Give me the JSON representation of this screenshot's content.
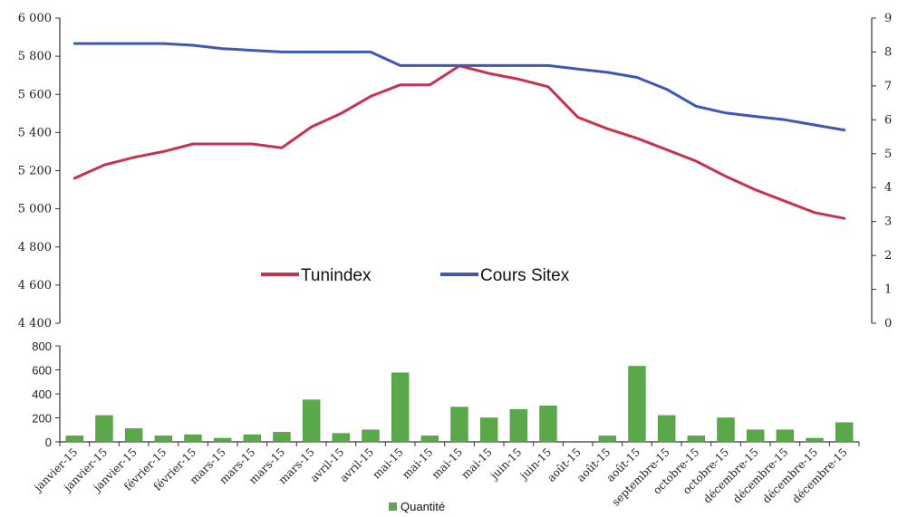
{
  "chart_data": [
    {
      "type": "line",
      "x": [
        "janvier-15",
        "janvier-15",
        "janvier-15",
        "février-15",
        "février-15",
        "mars-15",
        "mars-15",
        "mars-15",
        "mars-15",
        "avril-15",
        "avril-15",
        "mai-15",
        "mai-15",
        "mai-15",
        "mai-15",
        "juin-15",
        "juin-15",
        "août-15",
        "août-15",
        "août-15",
        "septembre-15",
        "octobre-15",
        "octobre-15",
        "décembre-15",
        "décembre-15",
        "décembre-15",
        "décembre-15"
      ],
      "y_left_ticks": [
        "6 000",
        "5 800",
        "5 600",
        "5 400",
        "5 200",
        "5 000",
        "4 800",
        "4 600",
        "4 400"
      ],
      "y_right_ticks": [
        "9",
        "8",
        "7",
        "6",
        "5",
        "4",
        "3",
        "2",
        "1",
        "0"
      ],
      "ylim_left": [
        4400,
        6000
      ],
      "ylim_right": [
        0,
        9
      ],
      "legend_position": "center",
      "series": [
        {
          "name": "Tunindex",
          "axis": "left",
          "color": "#c8324f",
          "values": [
            5160,
            5230,
            5270,
            5300,
            5340,
            5340,
            5340,
            5320,
            5430,
            5500,
            5590,
            5650,
            5650,
            5750,
            5710,
            5680,
            5640,
            5480,
            5420,
            5370,
            5310,
            5250,
            5170,
            5100,
            5040,
            4980,
            4950
          ]
        },
        {
          "name": "Cours Sitex",
          "axis": "right",
          "color": "#3f56b5",
          "values": [
            8.25,
            8.25,
            8.25,
            8.25,
            8.2,
            8.1,
            8.05,
            8.0,
            8.0,
            8.0,
            8.0,
            7.6,
            7.6,
            7.6,
            7.6,
            7.6,
            7.6,
            7.5,
            7.4,
            7.25,
            6.9,
            6.4,
            6.2,
            6.1,
            6.0,
            5.85,
            5.7
          ]
        }
      ]
    },
    {
      "type": "bar",
      "categories": [
        "janvier-15",
        "janvier-15",
        "janvier-15",
        "février-15",
        "février-15",
        "mars-15",
        "mars-15",
        "mars-15",
        "mars-15",
        "avril-15",
        "avril-15",
        "mai-15",
        "mai-15",
        "mai-15",
        "mai-15",
        "juin-15",
        "juin-15",
        "août-15",
        "août-15",
        "août-15",
        "septembre-15",
        "octobre-15",
        "octobre-15",
        "décembre-15",
        "décembre-15",
        "décembre-15",
        "décembre-15"
      ],
      "series": [
        {
          "name": "Quantité",
          "color": "#5aa84a",
          "values": [
            50,
            220,
            110,
            50,
            60,
            30,
            60,
            80,
            350,
            70,
            100,
            575,
            50,
            290,
            200,
            270,
            300,
            0,
            50,
            630,
            220,
            50,
            200,
            100,
            100,
            30,
            160
          ]
        }
      ],
      "y_ticks": [
        "800",
        "600",
        "400",
        "200",
        "0"
      ],
      "ylim": [
        0,
        800
      ],
      "legend_position": "bottom"
    }
  ]
}
